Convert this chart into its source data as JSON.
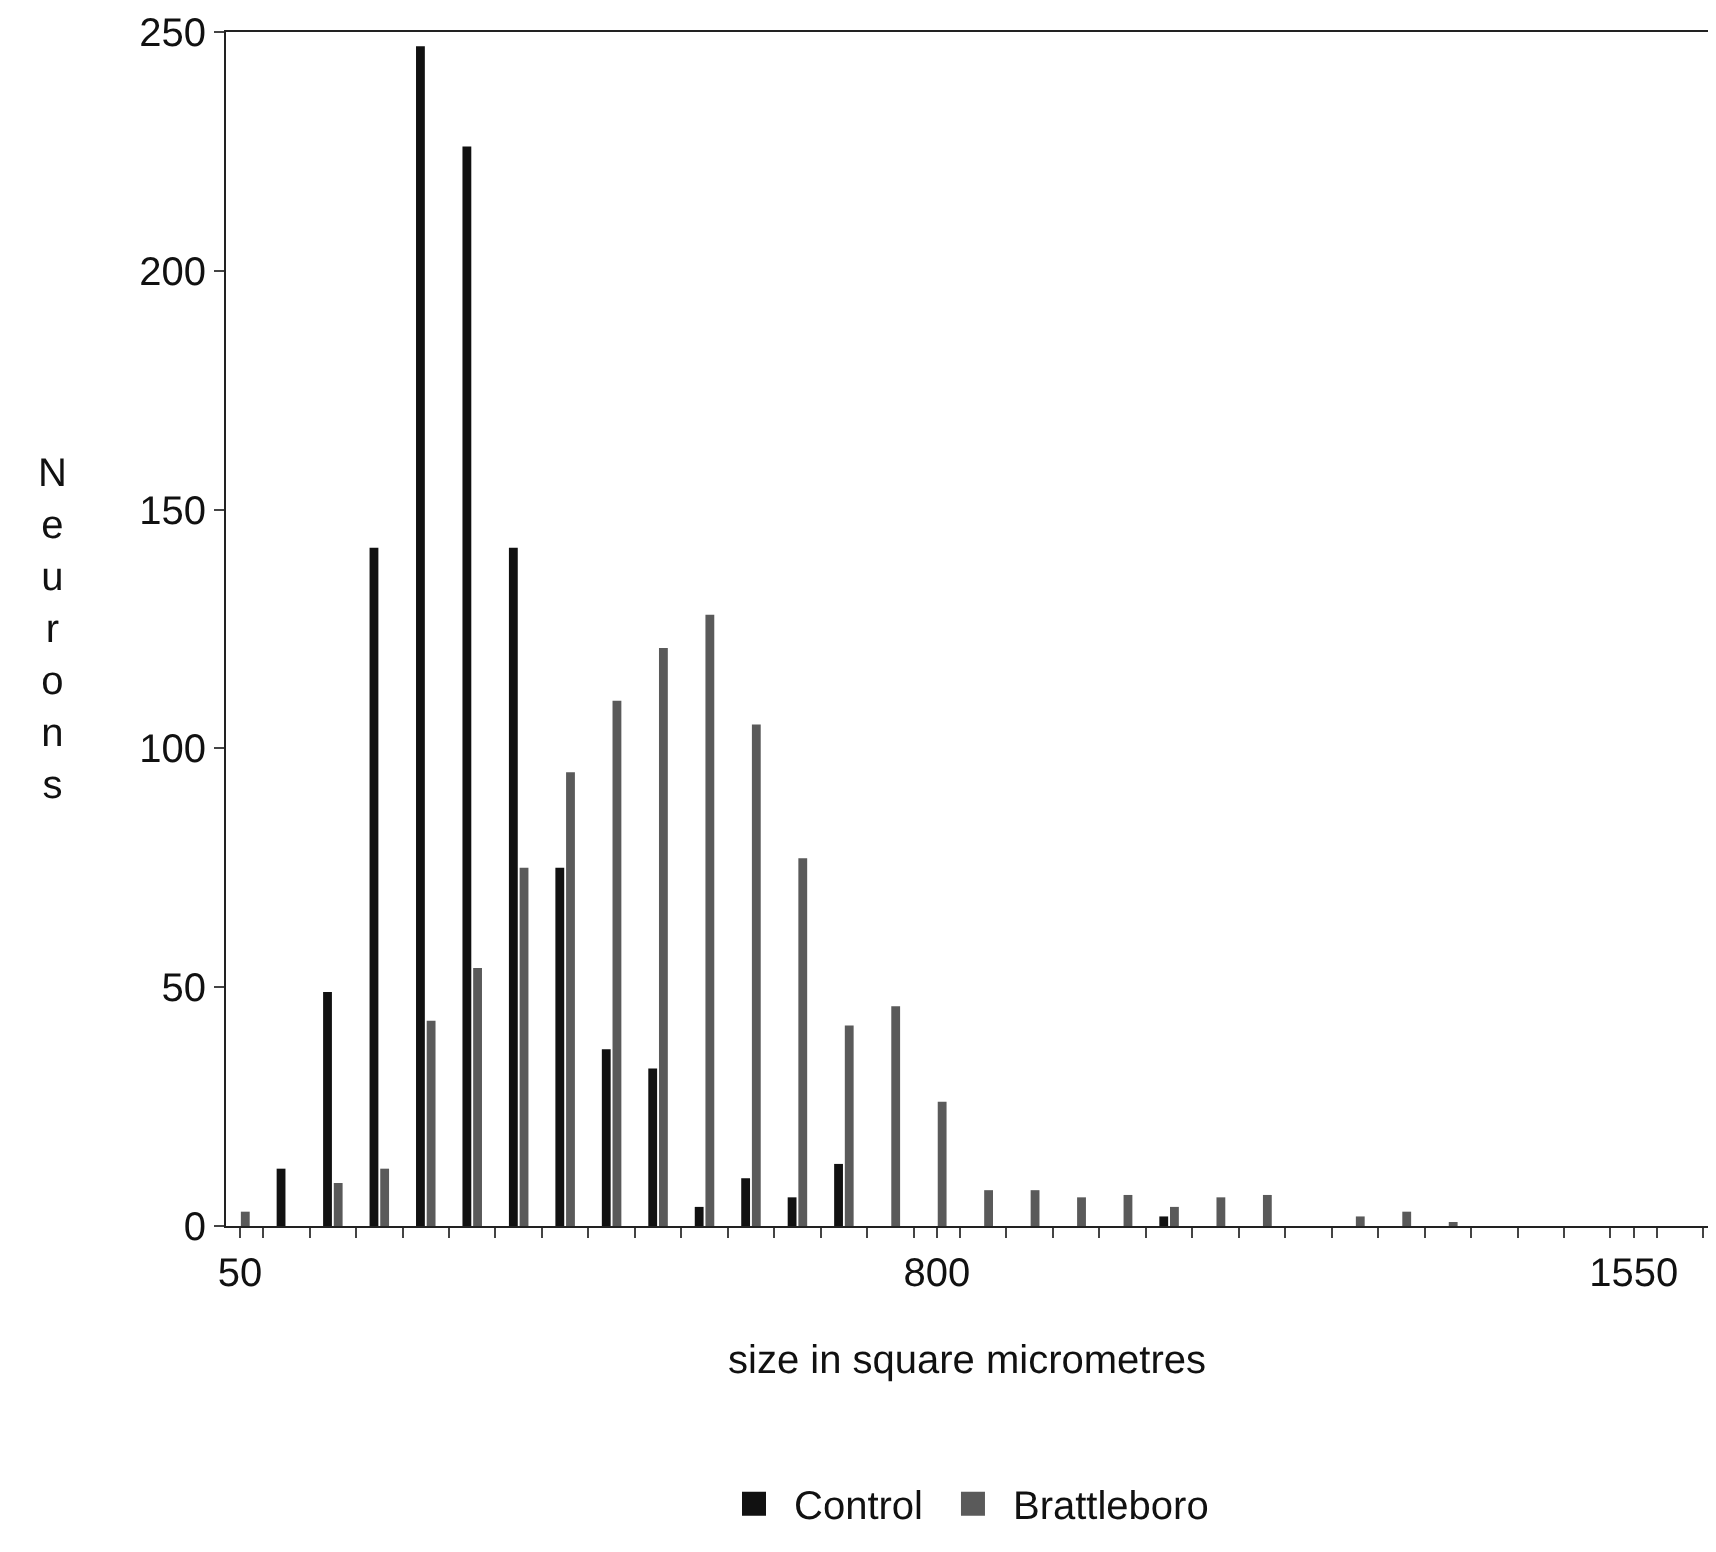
{
  "chart_data": {
    "type": "bar",
    "xlabel": "size in square micrometres",
    "ylabel": "Neurons",
    "x": [
      50,
      100,
      150,
      200,
      250,
      300,
      350,
      400,
      450,
      500,
      550,
      600,
      650,
      700,
      750,
      800,
      850,
      900,
      950,
      1000,
      1050,
      1100,
      1150,
      1200,
      1250,
      1300,
      1350,
      1400,
      1450,
      1500,
      1550
    ],
    "series": [
      {
        "name": "Control",
        "color": "#111111",
        "values": [
          0,
          12,
          49,
          142,
          247,
          226,
          142,
          75,
          37,
          33,
          4,
          10,
          6,
          13,
          0,
          0,
          0,
          0,
          0,
          0,
          2,
          0,
          0,
          0,
          0,
          0,
          0,
          0,
          0,
          0,
          0
        ]
      },
      {
        "name": "Brattleboro",
        "color": "#5a5a5a",
        "values": [
          3,
          0,
          9,
          12,
          43,
          54,
          75,
          95,
          110,
          121,
          128,
          105,
          77,
          42,
          46,
          26,
          7.5,
          7.5,
          6,
          6.5,
          4,
          6,
          6.5,
          0,
          2,
          3,
          0.5,
          0,
          0,
          0,
          0
        ]
      }
    ],
    "xlim": [
      35,
      1630
    ],
    "xticks": [
      50,
      {
        "value": 75,
        "label": null
      },
      {
        "value": 125,
        "label": null
      },
      {
        "value": 175,
        "label": null
      },
      {
        "value": 225,
        "label": null
      },
      {
        "value": 275,
        "label": null
      },
      {
        "value": 325,
        "label": null
      },
      {
        "value": 375,
        "label": null
      },
      {
        "value": 425,
        "label": null
      },
      {
        "value": 475,
        "label": null
      },
      {
        "value": 525,
        "label": null
      },
      {
        "value": 575,
        "label": null
      },
      {
        "value": 625,
        "label": null
      },
      {
        "value": 675,
        "label": null
      },
      {
        "value": 725,
        "label": null
      },
      {
        "value": 775,
        "label": null
      },
      800,
      {
        "value": 825,
        "label": null
      },
      {
        "value": 875,
        "label": null
      },
      {
        "value": 925,
        "label": null
      },
      {
        "value": 975,
        "label": null
      },
      {
        "value": 1025,
        "label": null
      },
      {
        "value": 1075,
        "label": null
      },
      {
        "value": 1125,
        "label": null
      },
      {
        "value": 1175,
        "label": null
      },
      {
        "value": 1225,
        "label": null
      },
      {
        "value": 1275,
        "label": null
      },
      {
        "value": 1325,
        "label": null
      },
      {
        "value": 1375,
        "label": null
      },
      {
        "value": 1425,
        "label": null
      },
      {
        "value": 1475,
        "label": null
      },
      {
        "value": 1525,
        "label": null
      },
      1550,
      {
        "value": 1575,
        "label": null
      },
      {
        "value": 1625,
        "label": null
      }
    ],
    "ylim": [
      0,
      250
    ],
    "yticks": [
      0,
      50,
      100,
      150,
      200,
      250
    ],
    "legend": "bottom"
  }
}
